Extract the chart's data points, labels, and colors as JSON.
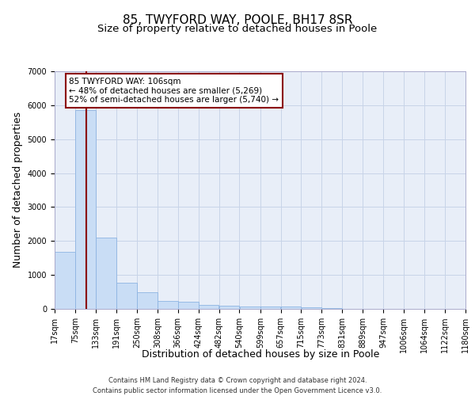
{
  "title": "85, TWYFORD WAY, POOLE, BH17 8SR",
  "subtitle": "Size of property relative to detached houses in Poole",
  "xlabel": "Distribution of detached houses by size in Poole",
  "ylabel": "Number of detached properties",
  "footer_line1": "Contains HM Land Registry data © Crown copyright and database right 2024.",
  "footer_line2": "Contains public sector information licensed under the Open Government Licence v3.0.",
  "annotation_line1": "85 TWYFORD WAY: 106sqm",
  "annotation_line2": "← 48% of detached houses are smaller (5,269)",
  "annotation_line3": "52% of semi-detached houses are larger (5,740) →",
  "property_size": 106,
  "bar_left_edges": [
    17,
    75,
    133,
    191,
    250,
    308,
    366,
    424,
    482,
    540,
    599,
    657,
    715,
    773,
    831,
    889,
    947,
    1006,
    1064,
    1122
  ],
  "bar_widths": [
    58,
    58,
    58,
    59,
    58,
    58,
    58,
    58,
    58,
    59,
    58,
    58,
    58,
    58,
    58,
    58,
    59,
    58,
    58,
    58
  ],
  "bar_heights": [
    1680,
    5850,
    2090,
    760,
    490,
    230,
    200,
    115,
    95,
    75,
    60,
    70,
    50,
    30,
    0,
    0,
    0,
    0,
    0,
    0
  ],
  "bar_color": "#c9ddf5",
  "bar_edge_color": "#8db4e2",
  "redline_x": 106,
  "ylim": [
    0,
    7000
  ],
  "yticks": [
    0,
    1000,
    2000,
    3000,
    4000,
    5000,
    6000,
    7000
  ],
  "xlim": [
    17,
    1180
  ],
  "tick_labels": [
    "17sqm",
    "75sqm",
    "133sqm",
    "191sqm",
    "250sqm",
    "308sqm",
    "366sqm",
    "424sqm",
    "482sqm",
    "540sqm",
    "599sqm",
    "657sqm",
    "715sqm",
    "773sqm",
    "831sqm",
    "889sqm",
    "947sqm",
    "1006sqm",
    "1064sqm",
    "1122sqm",
    "1180sqm"
  ],
  "tick_positions": [
    17,
    75,
    133,
    191,
    250,
    308,
    366,
    424,
    482,
    540,
    599,
    657,
    715,
    773,
    831,
    889,
    947,
    1006,
    1064,
    1122,
    1180
  ],
  "grid_color": "#c8d4e8",
  "bg_color": "#e8eef8",
  "title_fontsize": 11,
  "subtitle_fontsize": 9.5,
  "axis_label_fontsize": 9,
  "tick_fontsize": 7,
  "footer_fontsize": 6
}
